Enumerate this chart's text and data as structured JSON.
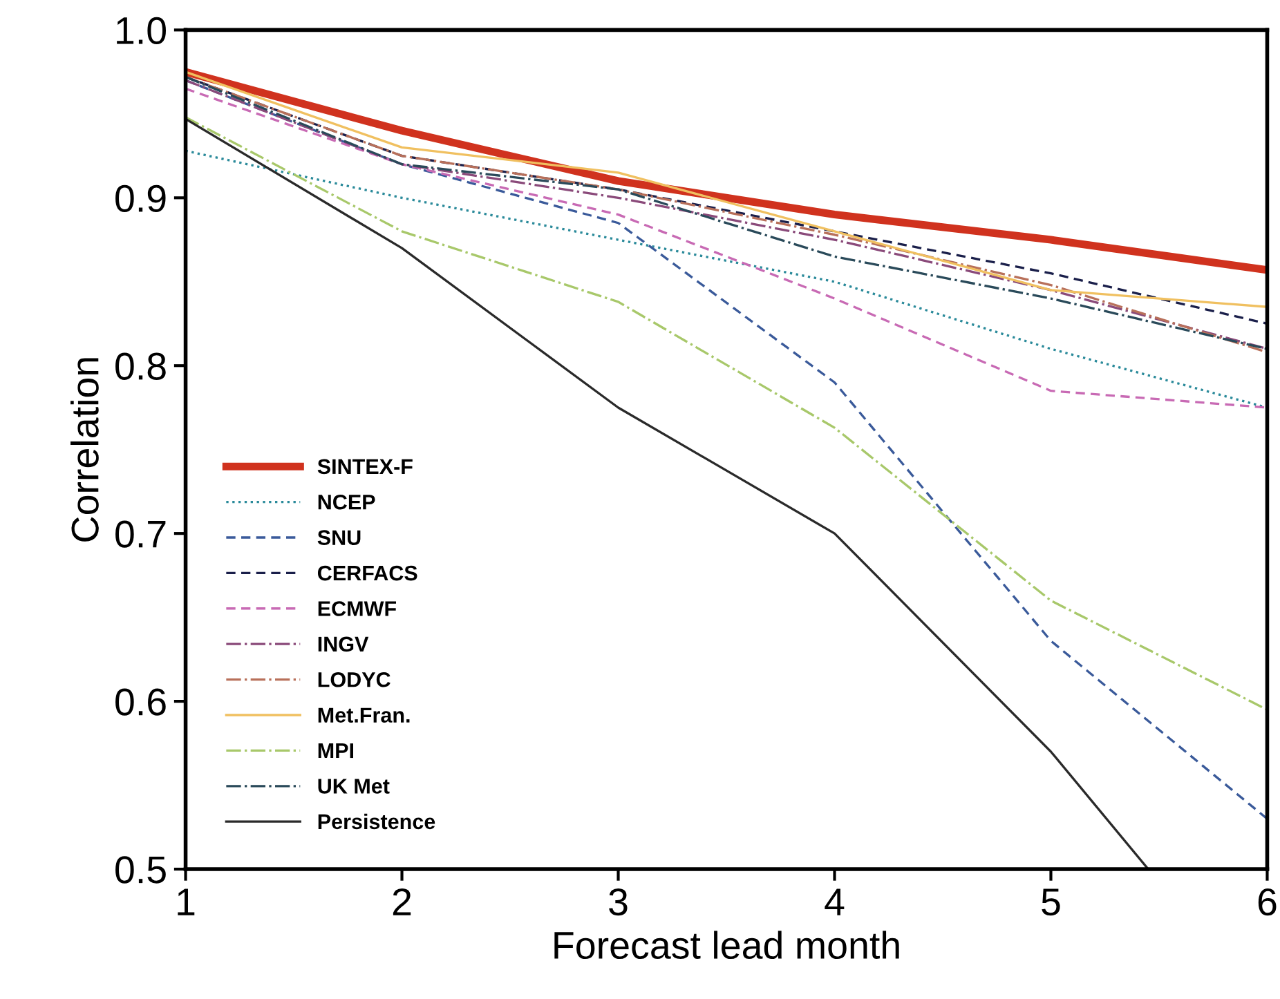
{
  "chart_data": {
    "type": "line",
    "xlabel": "Forecast lead month",
    "ylabel": "Correlation",
    "x": [
      1,
      2,
      3,
      4,
      5,
      6
    ],
    "xlim": [
      1,
      6
    ],
    "xticks": [
      1,
      2,
      3,
      4,
      5,
      6
    ],
    "ylim": [
      0.5,
      1.0
    ],
    "yticks": [
      {
        "value": 0.5,
        "label": "0.5"
      },
      {
        "value": 0.6,
        "label": "0.6"
      },
      {
        "value": 0.7,
        "label": "0.7"
      },
      {
        "value": 0.8,
        "label": "0.8"
      },
      {
        "value": 0.9,
        "label": "0.9"
      },
      {
        "value": 1.0,
        "label": "1.0"
      }
    ],
    "grid": false,
    "legend": "bottom left",
    "marker": "none",
    "series": [
      {
        "name": "SINTEX-F",
        "color": "#d0321e",
        "line_style": "solid",
        "values": [
          0.975,
          0.94,
          0.91,
          0.89,
          0.875,
          0.857
        ]
      },
      {
        "name": "NCEP",
        "color": "#2a8a9a",
        "line_style": "dotted",
        "values": [
          0.928,
          0.9,
          0.875,
          0.85,
          0.81,
          0.775
        ]
      },
      {
        "name": "SNU",
        "color": "#3a5a9a",
        "line_style": "dashed",
        "values": [
          0.97,
          0.92,
          0.885,
          0.79,
          0.636,
          0.53
        ]
      },
      {
        "name": "CERFACS",
        "color": "#1a1f4a",
        "line_style": "dashed",
        "values": [
          0.972,
          0.925,
          0.905,
          0.88,
          0.855,
          0.825
        ]
      },
      {
        "name": "ECMWF",
        "color": "#c86ab4",
        "line_style": "dashed",
        "values": [
          0.965,
          0.92,
          0.89,
          0.84,
          0.785,
          0.775
        ]
      },
      {
        "name": "INGV",
        "color": "#8a4a7a",
        "line_style": "dashdot",
        "values": [
          0.97,
          0.92,
          0.9,
          0.875,
          0.845,
          0.81
        ]
      },
      {
        "name": "LODYC",
        "color": "#b8705a",
        "line_style": "dashdot",
        "values": [
          0.972,
          0.925,
          0.905,
          0.878,
          0.848,
          0.808
        ]
      },
      {
        "name": "Met.Fran.",
        "color": "#f0c060",
        "line_style": "solid",
        "values": [
          0.975,
          0.93,
          0.915,
          0.88,
          0.845,
          0.835
        ]
      },
      {
        "name": "MPI",
        "color": "#a8c86a",
        "line_style": "dashdot",
        "values": [
          0.948,
          0.88,
          0.838,
          0.763,
          0.66,
          0.595
        ]
      },
      {
        "name": "UK Met",
        "color": "#2a4a5a",
        "line_style": "dashdot",
        "values": [
          0.972,
          0.92,
          0.905,
          0.865,
          0.84,
          0.81
        ]
      },
      {
        "name": "Persistence",
        "color": "#2a2a2a",
        "line_style": "solid",
        "x": [
          1,
          2,
          3,
          4,
          5,
          5.45
        ],
        "values": [
          0.947,
          0.87,
          0.775,
          0.7,
          0.57,
          0.5
        ]
      }
    ]
  }
}
